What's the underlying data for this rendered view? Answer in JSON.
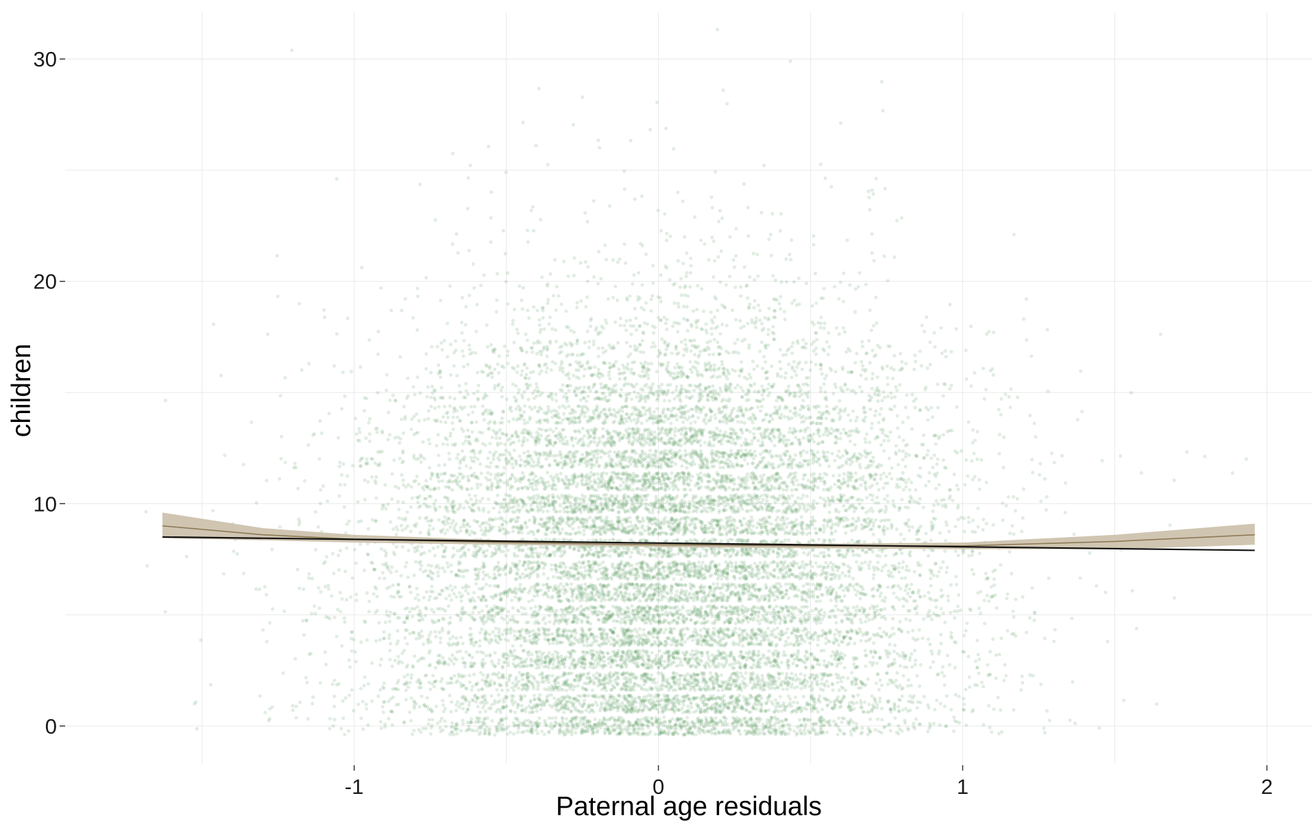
{
  "chart_data": {
    "type": "scatter",
    "xlabel": "Paternal age residuals",
    "ylabel": "children",
    "xlim": [
      -1.95,
      2.15
    ],
    "ylim": [
      -1.7,
      32.1
    ],
    "x_ticks": [
      -1,
      0,
      1,
      2
    ],
    "x_tick_labels": [
      "-1",
      "0",
      "1",
      "2"
    ],
    "y_ticks": [
      0,
      10,
      20,
      30
    ],
    "y_tick_labels": [
      "0",
      "10",
      "20",
      "30"
    ],
    "grid": true,
    "legend": "none",
    "points": {
      "description_counts": "jittered integer counts from 0 to ~31, densest between 0 and 16 children, x concentrated between -1.2 and 1.3",
      "color": "#5a9a5e",
      "opacity": 0.18,
      "y_levels": [
        0,
        1,
        2,
        3,
        4,
        5,
        6,
        7,
        8,
        9,
        10,
        11,
        12,
        13,
        14,
        15,
        16,
        17,
        18,
        19,
        20,
        21,
        22,
        23,
        24,
        25,
        26,
        27,
        28,
        29,
        30,
        31
      ],
      "level_weights": [
        1.0,
        1.0,
        0.95,
        0.95,
        0.95,
        1.0,
        1.0,
        1.0,
        1.0,
        1.0,
        1.0,
        0.95,
        0.85,
        0.75,
        0.62,
        0.5,
        0.38,
        0.27,
        0.18,
        0.12,
        0.08,
        0.05,
        0.035,
        0.025,
        0.018,
        0.012,
        0.008,
        0.006,
        0.004,
        0.003,
        0.002,
        0.001
      ]
    },
    "series": [
      {
        "type": "line",
        "color": "#111111",
        "x": [
          -1.63,
          1.96
        ],
        "y": [
          8.5,
          7.9
        ]
      },
      {
        "type": "smooth",
        "color": "#8c7a55",
        "ribbon_color": "#cbbfa8",
        "x": [
          -1.63,
          -1.3,
          -1.0,
          -0.5,
          0.0,
          0.5,
          1.0,
          1.5,
          1.96
        ],
        "y": [
          9.0,
          8.6,
          8.4,
          8.25,
          8.15,
          8.1,
          8.1,
          8.3,
          8.6
        ],
        "ymin": [
          8.45,
          8.35,
          8.25,
          8.15,
          8.05,
          8.0,
          7.95,
          7.95,
          8.15
        ],
        "ymax": [
          9.6,
          8.9,
          8.6,
          8.35,
          8.25,
          8.2,
          8.25,
          8.6,
          9.1
        ]
      }
    ]
  }
}
